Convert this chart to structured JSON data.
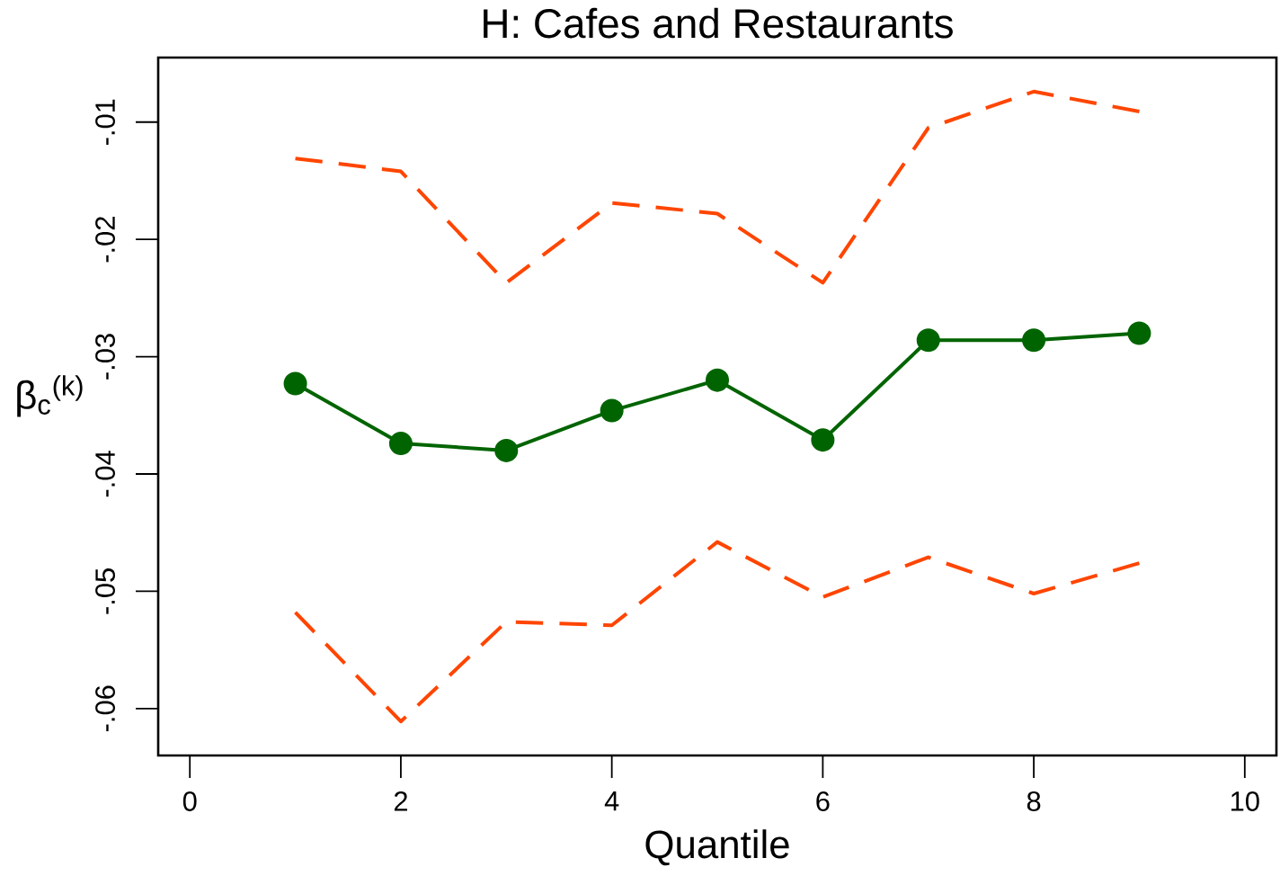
{
  "chart_data": {
    "type": "line",
    "title": "H: Cafes and Restaurants",
    "xlabel": "Quantile",
    "ylabel": "β$_{c}$$^{(k)}$",
    "x": [
      1,
      2,
      3,
      4,
      5,
      6,
      7,
      8,
      9
    ],
    "series": [
      {
        "color": "#ff4500",
        "marker": "none",
        "line_style": "dashed",
        "values": [
          -0.0131,
          -0.0142,
          -0.0237,
          -0.0169,
          -0.0178,
          -0.0237,
          -0.0105,
          -0.0074,
          -0.0091
        ]
      },
      {
        "color": "#006400",
        "marker": "circle",
        "line_style": "solid",
        "values": [
          -0.0323,
          -0.0374,
          -0.038,
          -0.0346,
          -0.032,
          -0.0371,
          -0.0286,
          -0.0286,
          -0.028
        ]
      },
      {
        "color": "#ff4500",
        "marker": "none",
        "line_style": "dashed",
        "values": [
          -0.0518,
          -0.0611,
          -0.0526,
          -0.0529,
          -0.0458,
          -0.0505,
          -0.0471,
          -0.0502,
          -0.0476
        ]
      }
    ],
    "xlim": [
      -0.3,
      10.3
    ],
    "ylim": [
      -0.064,
      -0.0045
    ],
    "xticks": [
      0,
      2,
      4,
      6,
      8,
      10
    ],
    "yticks": [
      {
        "value": -0.06,
        "label": "-.06"
      },
      {
        "value": -0.05,
        "label": "-.05"
      },
      {
        "value": -0.04,
        "label": "-.04"
      },
      {
        "value": -0.03,
        "label": "-.03"
      },
      {
        "value": -0.02,
        "label": "-.02"
      },
      {
        "value": -0.01,
        "label": "-.01"
      }
    ]
  }
}
